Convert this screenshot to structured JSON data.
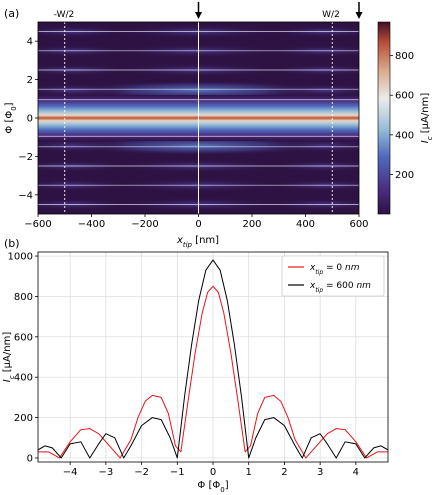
{
  "chart_data": [
    {
      "type": "heatmap",
      "panel_label": "(a)",
      "xlabel": "x_tip [nm]",
      "ylabel": "Φ [Φ₀]",
      "xlim": [
        -600,
        600
      ],
      "ylim": [
        -5,
        5
      ],
      "xticks": [
        -600,
        -400,
        -200,
        0,
        200,
        400,
        600
      ],
      "xtick_labels": [
        "−600",
        "−400",
        "−200",
        "0",
        "200",
        "400",
        "600"
      ],
      "yticks": [
        -4,
        -2,
        0,
        2,
        4
      ],
      "ytick_labels": [
        "−4",
        "−2",
        "0",
        "2",
        "4"
      ],
      "grid": true,
      "colormap": "twilight_shifted",
      "colorbar": {
        "label": "I_c [μA/nm]",
        "range": [
          0,
          970
        ],
        "ticks": [
          200,
          400,
          600,
          800
        ],
        "tick_labels": [
          "200",
          "400",
          "600",
          "800"
        ]
      },
      "annotations": [
        {
          "text": "-W/2",
          "x": -500
        },
        {
          "text": "W/2",
          "x": 500
        }
      ],
      "arrows_at_x": [
        0,
        600
      ],
      "vertical_lines_x": [
        -500,
        500
      ],
      "central_lobe_peak": 970,
      "side_lobe_peak_at_edges": 200,
      "side_lobe_peak_at_center": 310
    },
    {
      "type": "line",
      "panel_label": "(b)",
      "xlabel": "Φ [Φ₀]",
      "ylabel": "I_c [μA/nm]",
      "xlim": [
        -4.9,
        4.9
      ],
      "ylim": [
        -20,
        1020
      ],
      "xticks": [
        -4,
        -3,
        -2,
        -1,
        0,
        1,
        2,
        3,
        4
      ],
      "xtick_labels": [
        "−4",
        "−3",
        "−2",
        "−1",
        "0",
        "1",
        "2",
        "3",
        "4"
      ],
      "yticks": [
        0,
        200,
        400,
        600,
        800,
        1000
      ],
      "ytick_labels": [
        "0",
        "200",
        "400",
        "600",
        "800",
        "1000"
      ],
      "grid": true,
      "legend_position": "top-right",
      "series": [
        {
          "name": "x_tip = 0 nm",
          "color": "#e8141b",
          "x": [
            -4.9,
            -4.6,
            -4.3,
            -4.0,
            -3.7,
            -3.45,
            -3.2,
            -2.9,
            -2.6,
            -2.3,
            -2.1,
            -1.9,
            -1.7,
            -1.45,
            -1.25,
            -1.05,
            -0.9,
            -0.7,
            -0.5,
            -0.3,
            -0.15,
            0.0,
            0.15,
            0.3,
            0.5,
            0.7,
            0.9,
            1.05,
            1.25,
            1.45,
            1.7,
            1.9,
            2.1,
            2.3,
            2.6,
            2.9,
            3.2,
            3.45,
            3.7,
            4.0,
            4.3,
            4.6,
            4.9
          ],
          "values": [
            30,
            30,
            0,
            80,
            140,
            145,
            120,
            60,
            0,
            90,
            200,
            280,
            310,
            300,
            220,
            60,
            30,
            280,
            520,
            720,
            820,
            850,
            820,
            720,
            520,
            280,
            30,
            60,
            220,
            300,
            310,
            280,
            200,
            90,
            0,
            60,
            120,
            145,
            140,
            80,
            0,
            30,
            30
          ]
        },
        {
          "name": "x_tip = 600 nm",
          "color": "#000000",
          "x": [
            -4.9,
            -4.7,
            -4.5,
            -4.25,
            -4.0,
            -3.7,
            -3.45,
            -3.2,
            -3.0,
            -2.75,
            -2.5,
            -2.3,
            -2.0,
            -1.7,
            -1.45,
            -1.2,
            -1.0,
            -0.8,
            -0.6,
            -0.4,
            -0.2,
            0.0,
            0.2,
            0.4,
            0.6,
            0.8,
            1.0,
            1.2,
            1.45,
            1.7,
            2.0,
            2.3,
            2.5,
            2.75,
            3.0,
            3.2,
            3.45,
            3.7,
            4.0,
            4.25,
            4.5,
            4.7,
            4.9
          ],
          "values": [
            40,
            60,
            50,
            0,
            70,
            80,
            0,
            70,
            120,
            100,
            0,
            60,
            160,
            200,
            190,
            100,
            0,
            300,
            560,
            780,
            930,
            980,
            930,
            780,
            560,
            300,
            0,
            100,
            190,
            200,
            160,
            60,
            0,
            100,
            120,
            70,
            0,
            80,
            70,
            0,
            50,
            60,
            40
          ]
        }
      ]
    }
  ]
}
